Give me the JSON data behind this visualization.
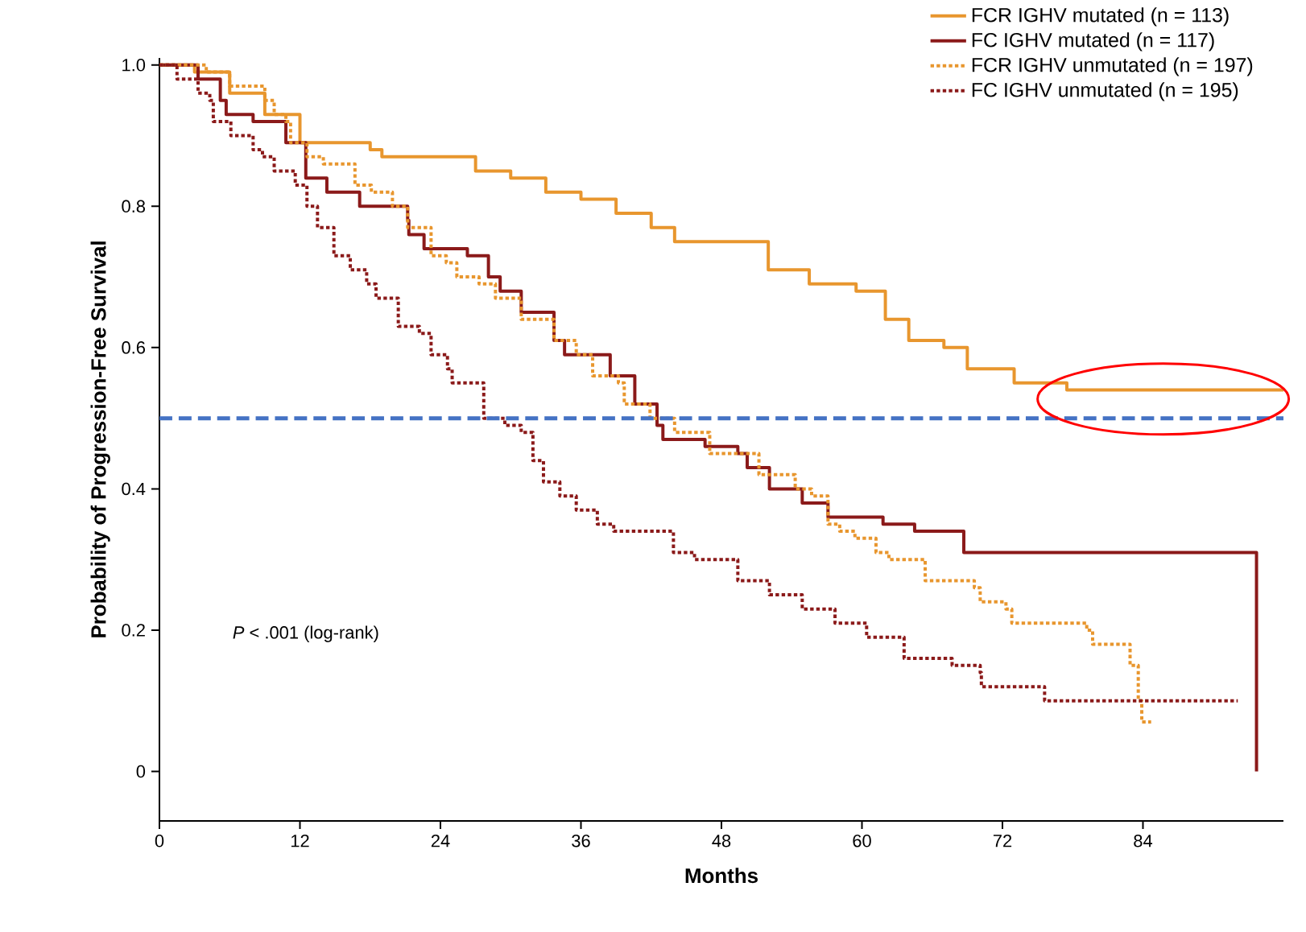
{
  "chart_data": {
    "type": "step",
    "xlabel": "Months",
    "ylabel": "Probability of Progression-Free Survival",
    "xlim": [
      0,
      96
    ],
    "ylim": [
      -0.07,
      1.01
    ],
    "xticks": [
      0,
      12,
      24,
      36,
      48,
      60,
      72,
      84
    ],
    "yticks": [
      {
        "value": 0,
        "label": "0"
      },
      0.2,
      0.4,
      0.6,
      0.8,
      {
        "value": 1,
        "label": "1.0"
      }
    ],
    "legend": "top right",
    "annotations": [
      "*P* < .001 (log-rank)"
    ],
    "ref_lines": [
      {
        "axis": "y",
        "value": 0.5,
        "color": "#4472c4",
        "line_style": "dashed"
      }
    ],
    "series": [
      {
        "name": "FCR IGHV mutated (n = 113)",
        "color": "#e8962e",
        "line_style": "solid",
        "x": [
          0,
          3,
          6,
          9,
          12,
          18,
          19,
          26,
          27,
          30,
          33,
          36,
          39,
          42,
          44,
          52,
          55.5,
          59.5,
          62,
          64,
          67,
          69,
          73,
          77.5,
          96
        ],
        "values": [
          1.0,
          0.99,
          0.96,
          0.93,
          0.89,
          0.88,
          0.87,
          0.87,
          0.85,
          0.84,
          0.82,
          0.81,
          0.79,
          0.77,
          0.75,
          0.71,
          0.69,
          0.68,
          0.64,
          0.61,
          0.6,
          0.57,
          0.55,
          0.54,
          0.54
        ]
      },
      {
        "name": "FC IGHV mutated (n = 117)",
        "color": "#8b1a1a",
        "line_style": "solid",
        "x": [
          0,
          3.3,
          5.2,
          5.7,
          8,
          10.8,
          12.5,
          14.3,
          16.3,
          17.1,
          21.2,
          21.3,
          22.6,
          26.3,
          28.1,
          29.1,
          30.9,
          33.7,
          34.6,
          38.5,
          40.6,
          42.5,
          43,
          46.1,
          46.6,
          49.4,
          50.2,
          52.1,
          54.3,
          54.9,
          57.1,
          61.8,
          64.5,
          68.7,
          93.7,
          93.7
        ],
        "values": [
          1.0,
          0.98,
          0.95,
          0.93,
          0.92,
          0.89,
          0.84,
          0.82,
          0.82,
          0.8,
          0.78,
          0.76,
          0.74,
          0.73,
          0.7,
          0.68,
          0.65,
          0.61,
          0.59,
          0.56,
          0.52,
          0.49,
          0.47,
          0.47,
          0.46,
          0.45,
          0.43,
          0.4,
          0.4,
          0.38,
          0.36,
          0.35,
          0.34,
          0.31,
          0.31,
          0.0
        ]
      },
      {
        "name": "FCR IGHV unmutated (n = 197)",
        "color": "#e8962e",
        "line_style": "dotted",
        "x": [
          0,
          4,
          6,
          9,
          9.8,
          10.8,
          11.2,
          12.6,
          14,
          16.3,
          16.7,
          18.1,
          19.9,
          21.2,
          23.2,
          24.5,
          25.4,
          27.3,
          28.7,
          30.9,
          33.7,
          35.6,
          37,
          39.2,
          39.7,
          41.9,
          44,
          47,
          51.2,
          54.3,
          55.7,
          57.1,
          58.1,
          59.4,
          61.2,
          62.3,
          65.4,
          69.6,
          70.1,
          72.3,
          72.8,
          79.2,
          79.7,
          82.6,
          82.9,
          83.6,
          83.9,
          84.7
        ],
        "values": [
          1.0,
          0.99,
          0.97,
          0.95,
          0.93,
          0.92,
          0.89,
          0.87,
          0.86,
          0.86,
          0.83,
          0.82,
          0.8,
          0.77,
          0.73,
          0.72,
          0.7,
          0.69,
          0.67,
          0.64,
          0.61,
          0.59,
          0.56,
          0.55,
          0.52,
          0.5,
          0.48,
          0.45,
          0.42,
          0.4,
          0.39,
          0.35,
          0.34,
          0.33,
          0.31,
          0.3,
          0.27,
          0.26,
          0.24,
          0.23,
          0.21,
          0.2,
          0.18,
          0.18,
          0.15,
          0.1,
          0.07,
          0.07
        ]
      },
      {
        "name": "FC IGHV unmutated (n = 195)",
        "color": "#8b1a1a",
        "line_style": "dotted",
        "x": [
          0,
          1.5,
          2.9,
          3.3,
          4.3,
          4.6,
          6.1,
          8,
          8.8,
          9.8,
          11.6,
          12.6,
          13.5,
          14.9,
          16.3,
          17.7,
          18.5,
          20.4,
          22.2,
          23.2,
          24.6,
          25,
          27.7,
          29.5,
          30.9,
          31.9,
          32.8,
          34.2,
          35.6,
          37.4,
          38.8,
          40,
          43.9,
          45.7,
          49.4,
          52.1,
          54.9,
          57.7,
          60.4,
          63.6,
          67.7,
          70.1,
          70.2,
          75.6,
          92.1
        ],
        "values": [
          1.0,
          0.98,
          0.98,
          0.96,
          0.95,
          0.92,
          0.9,
          0.88,
          0.87,
          0.85,
          0.83,
          0.8,
          0.77,
          0.73,
          0.71,
          0.69,
          0.67,
          0.63,
          0.62,
          0.59,
          0.57,
          0.55,
          0.5,
          0.49,
          0.48,
          0.44,
          0.41,
          0.39,
          0.37,
          0.35,
          0.34,
          0.34,
          0.31,
          0.3,
          0.27,
          0.25,
          0.23,
          0.21,
          0.19,
          0.16,
          0.15,
          0.14,
          0.12,
          0.1,
          0.1
        ]
      }
    ]
  }
}
